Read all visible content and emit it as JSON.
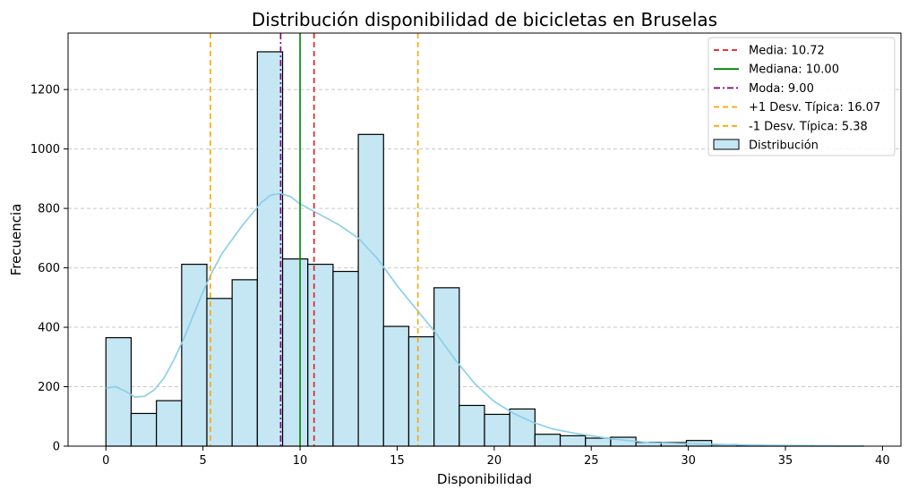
{
  "chart_data": {
    "type": "bar",
    "title": "Distribución disponibilidad de bicicletas en Bruselas",
    "xlabel": "Disponibilidad",
    "ylabel": "Frecuencia",
    "xlim": [
      -1.95,
      40.95
    ],
    "ylim": [
      0,
      1390
    ],
    "x_ticks": [
      0,
      5,
      10,
      15,
      20,
      25,
      30,
      35,
      40
    ],
    "y_ticks": [
      0,
      200,
      400,
      600,
      800,
      1000,
      1200
    ],
    "grid": "y-dashed",
    "legend_position": "top-right",
    "bins": {
      "edges": [
        0,
        1.3,
        2.6,
        3.9,
        5.2,
        6.5,
        7.8,
        9.1,
        10.4,
        11.7,
        13.0,
        14.3,
        15.6,
        16.9,
        18.2,
        19.5,
        20.8,
        22.1,
        23.4,
        24.7,
        26.0,
        27.3,
        28.6,
        29.9,
        31.2,
        32.5,
        33.8,
        35.1,
        36.4,
        37.7,
        39.0
      ],
      "counts": [
        365,
        110,
        153,
        612,
        497,
        560,
        1327,
        630,
        612,
        588,
        1049,
        403,
        368,
        533,
        137,
        107,
        125,
        40,
        35,
        27,
        30,
        13,
        12,
        19,
        5,
        3,
        2,
        1,
        1,
        1
      ]
    },
    "kde": {
      "x": [
        0,
        0.5,
        1,
        1.5,
        2,
        2.5,
        3,
        3.5,
        4,
        4.5,
        5,
        5.5,
        6,
        7,
        8,
        8.5,
        9,
        9.5,
        10,
        11,
        12,
        13,
        14,
        15,
        16,
        17,
        18,
        19,
        20,
        21,
        22,
        23,
        24,
        25,
        26,
        27,
        28,
        30,
        32,
        34,
        36,
        38,
        39
      ],
      "y": [
        195,
        200,
        185,
        165,
        168,
        190,
        230,
        290,
        360,
        440,
        520,
        590,
        650,
        740,
        820,
        845,
        850,
        840,
        815,
        780,
        745,
        700,
        630,
        540,
        460,
        380,
        290,
        210,
        150,
        110,
        80,
        58,
        45,
        35,
        25,
        18,
        12,
        8,
        5,
        3,
        2,
        1,
        1
      ]
    },
    "reference_lines": [
      {
        "label": "Media: 10.72",
        "x": 10.72,
        "color": "#e41a1c",
        "style": "dashed"
      },
      {
        "label": "Mediana: 10.00",
        "x": 10.0,
        "color": "#008000",
        "style": "solid"
      },
      {
        "label": "Moda: 9.00",
        "x": 9.0,
        "color": "#800080",
        "style": "dashdot"
      },
      {
        "label": "+1 Desv. Típica: 16.07",
        "x": 16.07,
        "color": "#ffa500",
        "style": "dashed"
      },
      {
        "label": "-1 Desv. Típica: 5.38",
        "x": 5.38,
        "color": "#ffa500",
        "style": "dashed"
      }
    ],
    "legend": [
      {
        "label": "Media: 10.72",
        "color": "#e41a1c",
        "style": "dashed"
      },
      {
        "label": "Mediana: 10.00",
        "color": "#008000",
        "style": "solid"
      },
      {
        "label": "Moda: 9.00",
        "color": "#800080",
        "style": "dashdot"
      },
      {
        "label": "+1 Desv. Típica: 16.07",
        "color": "#ffa500",
        "style": "dashed"
      },
      {
        "label": "-1 Desv. Típica: 5.38",
        "color": "#ffa500",
        "style": "dashed"
      },
      {
        "label": "Distribución",
        "color": "#c5e6f3",
        "style": "patch"
      }
    ],
    "colors": {
      "bar_fill": "#c5e6f3",
      "bar_edge": "#000000",
      "kde_line": "#87ceeb",
      "grid": "#c8c8c8"
    }
  }
}
